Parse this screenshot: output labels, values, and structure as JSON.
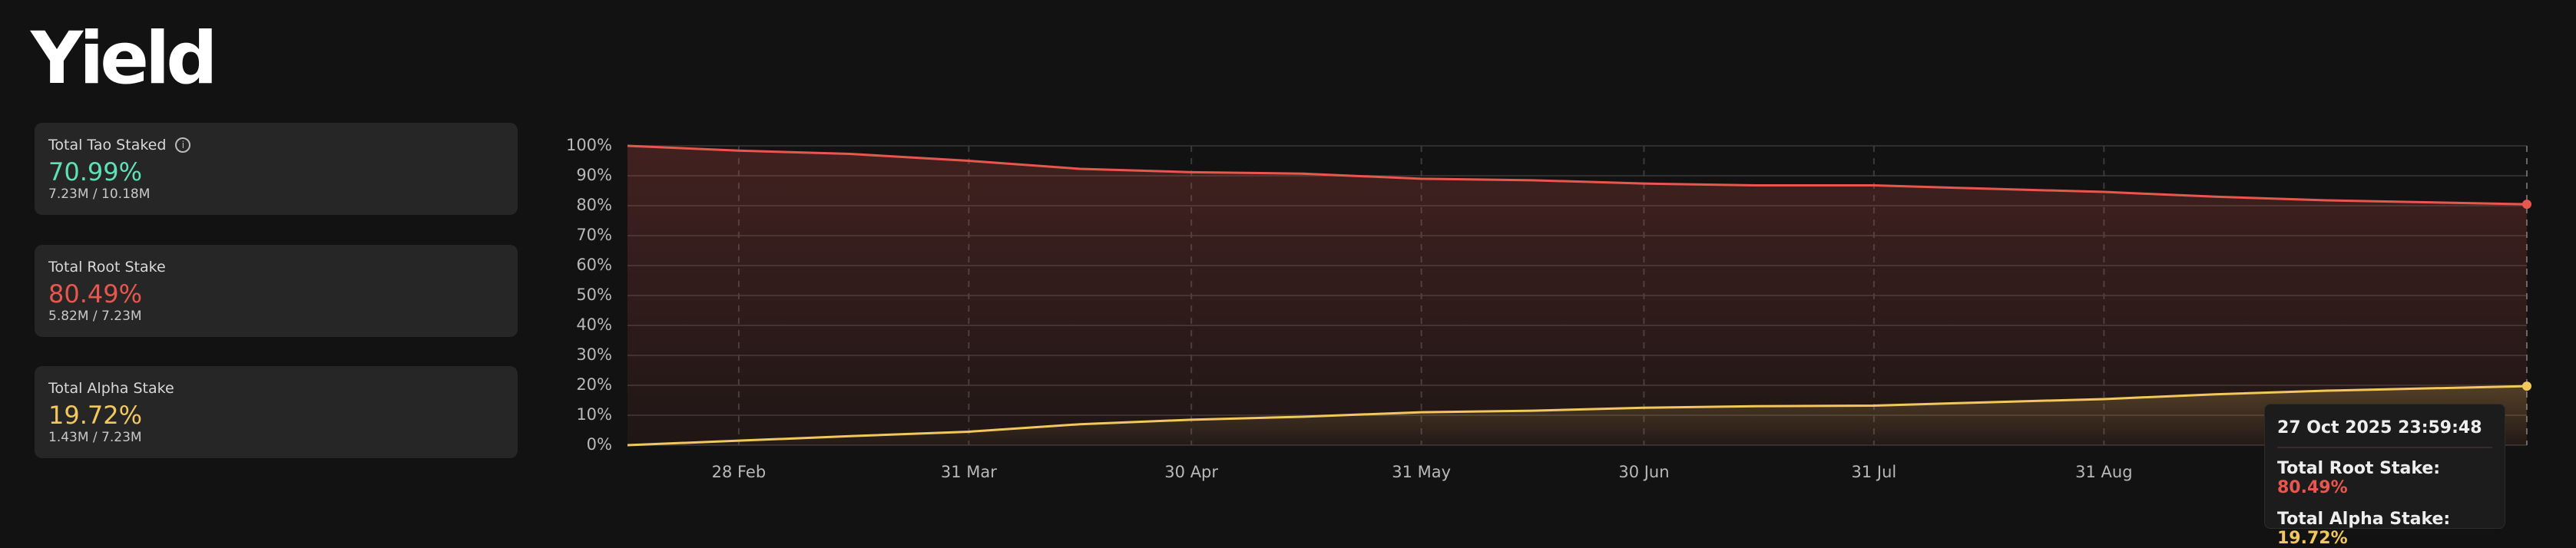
{
  "header": {
    "title": "Yield"
  },
  "cards": [
    {
      "label": "Total Tao Staked",
      "value": "70.99%",
      "detail": "7.23M / 10.18M",
      "color": "#5fe0b7"
    },
    {
      "label": "Total Root Stake",
      "value": "80.49%",
      "detail": "5.82M / 7.23M",
      "color": "#e8574e"
    },
    {
      "label": "Total Alpha Stake",
      "value": "19.72%",
      "detail": "1.43M / 7.23M",
      "color": "#f2c75c"
    }
  ],
  "chart_data": {
    "type": "line",
    "x": [
      "2025-02-13",
      "2025-02-28",
      "2025-03-15",
      "2025-03-31",
      "2025-04-15",
      "2025-04-30",
      "2025-05-15",
      "2025-05-31",
      "2025-06-15",
      "2025-06-30",
      "2025-07-15",
      "2025-07-31",
      "2025-08-15",
      "2025-08-31",
      "2025-09-15",
      "2025-09-30",
      "2025-10-27"
    ],
    "series": [
      {
        "color": "#e8574e",
        "values": [
          100,
          98.4,
          97.3,
          95,
          92.3,
          91.2,
          90.7,
          89,
          88.5,
          87.4,
          86.8,
          86.8,
          85.7,
          84.6,
          83,
          81.8,
          80.49
        ]
      },
      {
        "color": "#f2c75c",
        "values": [
          0,
          1.5,
          3,
          4.5,
          7,
          8.5,
          9.5,
          11,
          11.5,
          12.5,
          13,
          13.2,
          14.3,
          15.4,
          17,
          18.2,
          19.72
        ]
      }
    ],
    "xlim": [
      "2025-02-13",
      "2025-10-27"
    ],
    "xticks": [
      {
        "value": "2025-02-28",
        "label": "28 Feb"
      },
      {
        "value": "2025-03-31",
        "label": "31 Mar"
      },
      {
        "value": "2025-04-30",
        "label": "30 Apr"
      },
      {
        "value": "2025-05-31",
        "label": "31 May"
      },
      {
        "value": "2025-06-30",
        "label": "30 Jun"
      },
      {
        "value": "2025-07-31",
        "label": "31 Jul"
      },
      {
        "value": "2025-08-31",
        "label": "31 Aug"
      }
    ],
    "ylim": [
      0,
      100
    ],
    "yticks": [
      {
        "value": 0,
        "label": "0%"
      },
      {
        "value": 10,
        "label": "10%"
      },
      {
        "value": 20,
        "label": "20%"
      },
      {
        "value": 30,
        "label": "30%"
      },
      {
        "value": 40,
        "label": "40%"
      },
      {
        "value": 50,
        "label": "50%"
      },
      {
        "value": 60,
        "label": "60%"
      },
      {
        "value": 70,
        "label": "70%"
      },
      {
        "value": 80,
        "label": "80%"
      },
      {
        "value": 90,
        "label": "90%"
      },
      {
        "value": 100,
        "label": "100%"
      }
    ],
    "grid": true
  },
  "tooltip": {
    "date": "27 Oct 2025 23:59:48",
    "rows": [
      {
        "label": "Total Root Stake:",
        "value": "80.49%",
        "color": "#e8574e"
      },
      {
        "label": "Total Alpha Stake:",
        "value": "19.72%",
        "color": "#f2c75c"
      }
    ]
  }
}
